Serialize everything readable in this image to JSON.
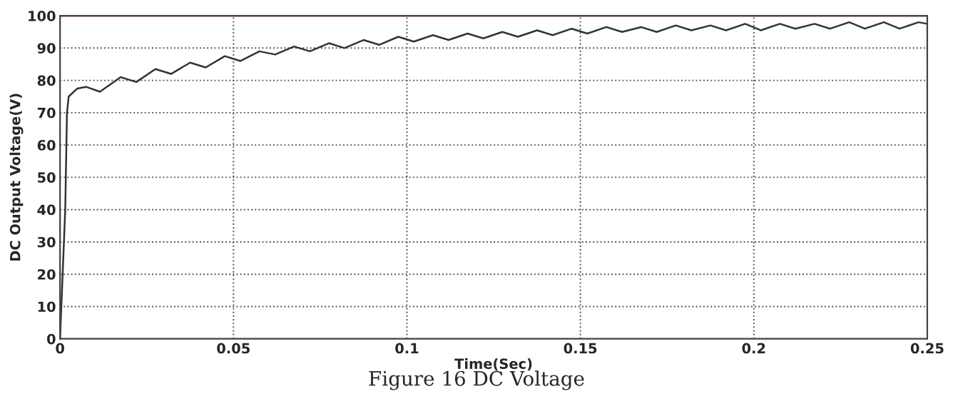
{
  "chart_data": {
    "type": "line",
    "xlabel": "Time(Sec)",
    "ylabel": "DC Output Voltage(V)",
    "annotations": [
      "Figure 16 DC Voltage"
    ],
    "xlim": [
      0,
      0.25
    ],
    "ylim": [
      0,
      100
    ],
    "xticks": [
      0,
      0.05,
      0.1,
      0.15,
      0.2,
      0.25
    ],
    "yticks": [
      0,
      10,
      20,
      30,
      40,
      50,
      60,
      70,
      80,
      90,
      100
    ],
    "grid": true,
    "line_style": "solid",
    "marker": "none",
    "ref_lines": [
      {
        "axis": "y",
        "value": 100,
        "color": "#e8a0c8"
      }
    ],
    "series": [
      {
        "color": "#333333",
        "x": [
          0,
          0.0015,
          0.002,
          0.0025,
          0.005,
          0.0075,
          0.0115,
          0.0175,
          0.022,
          0.0275,
          0.032,
          0.0375,
          0.042,
          0.0475,
          0.052,
          0.0575,
          0.062,
          0.0675,
          0.072,
          0.0775,
          0.082,
          0.0875,
          0.092,
          0.0975,
          0.102,
          0.1075,
          0.112,
          0.1175,
          0.122,
          0.1275,
          0.132,
          0.1375,
          0.142,
          0.1475,
          0.152,
          0.1575,
          0.162,
          0.1675,
          0.172,
          0.1775,
          0.182,
          0.1875,
          0.192,
          0.1975,
          0.202,
          0.2075,
          0.212,
          0.2175,
          0.222,
          0.2275,
          0.232,
          0.2375,
          0.242,
          0.2475,
          0.25
        ],
        "values": [
          0,
          40,
          70,
          75,
          77.5,
          78,
          76.5,
          81,
          79.5,
          83.5,
          82,
          85.5,
          84,
          87.5,
          86,
          89,
          88,
          90.5,
          89,
          91.5,
          90,
          92.5,
          91,
          93.5,
          92,
          94,
          92.5,
          94.5,
          93,
          95,
          93.5,
          95.5,
          94,
          96,
          94.5,
          96.5,
          95,
          96.5,
          95,
          97,
          95.5,
          97,
          95.5,
          97.5,
          95.5,
          97.5,
          96,
          97.5,
          96,
          98,
          96,
          98,
          96,
          98,
          97.5
        ]
      }
    ]
  }
}
